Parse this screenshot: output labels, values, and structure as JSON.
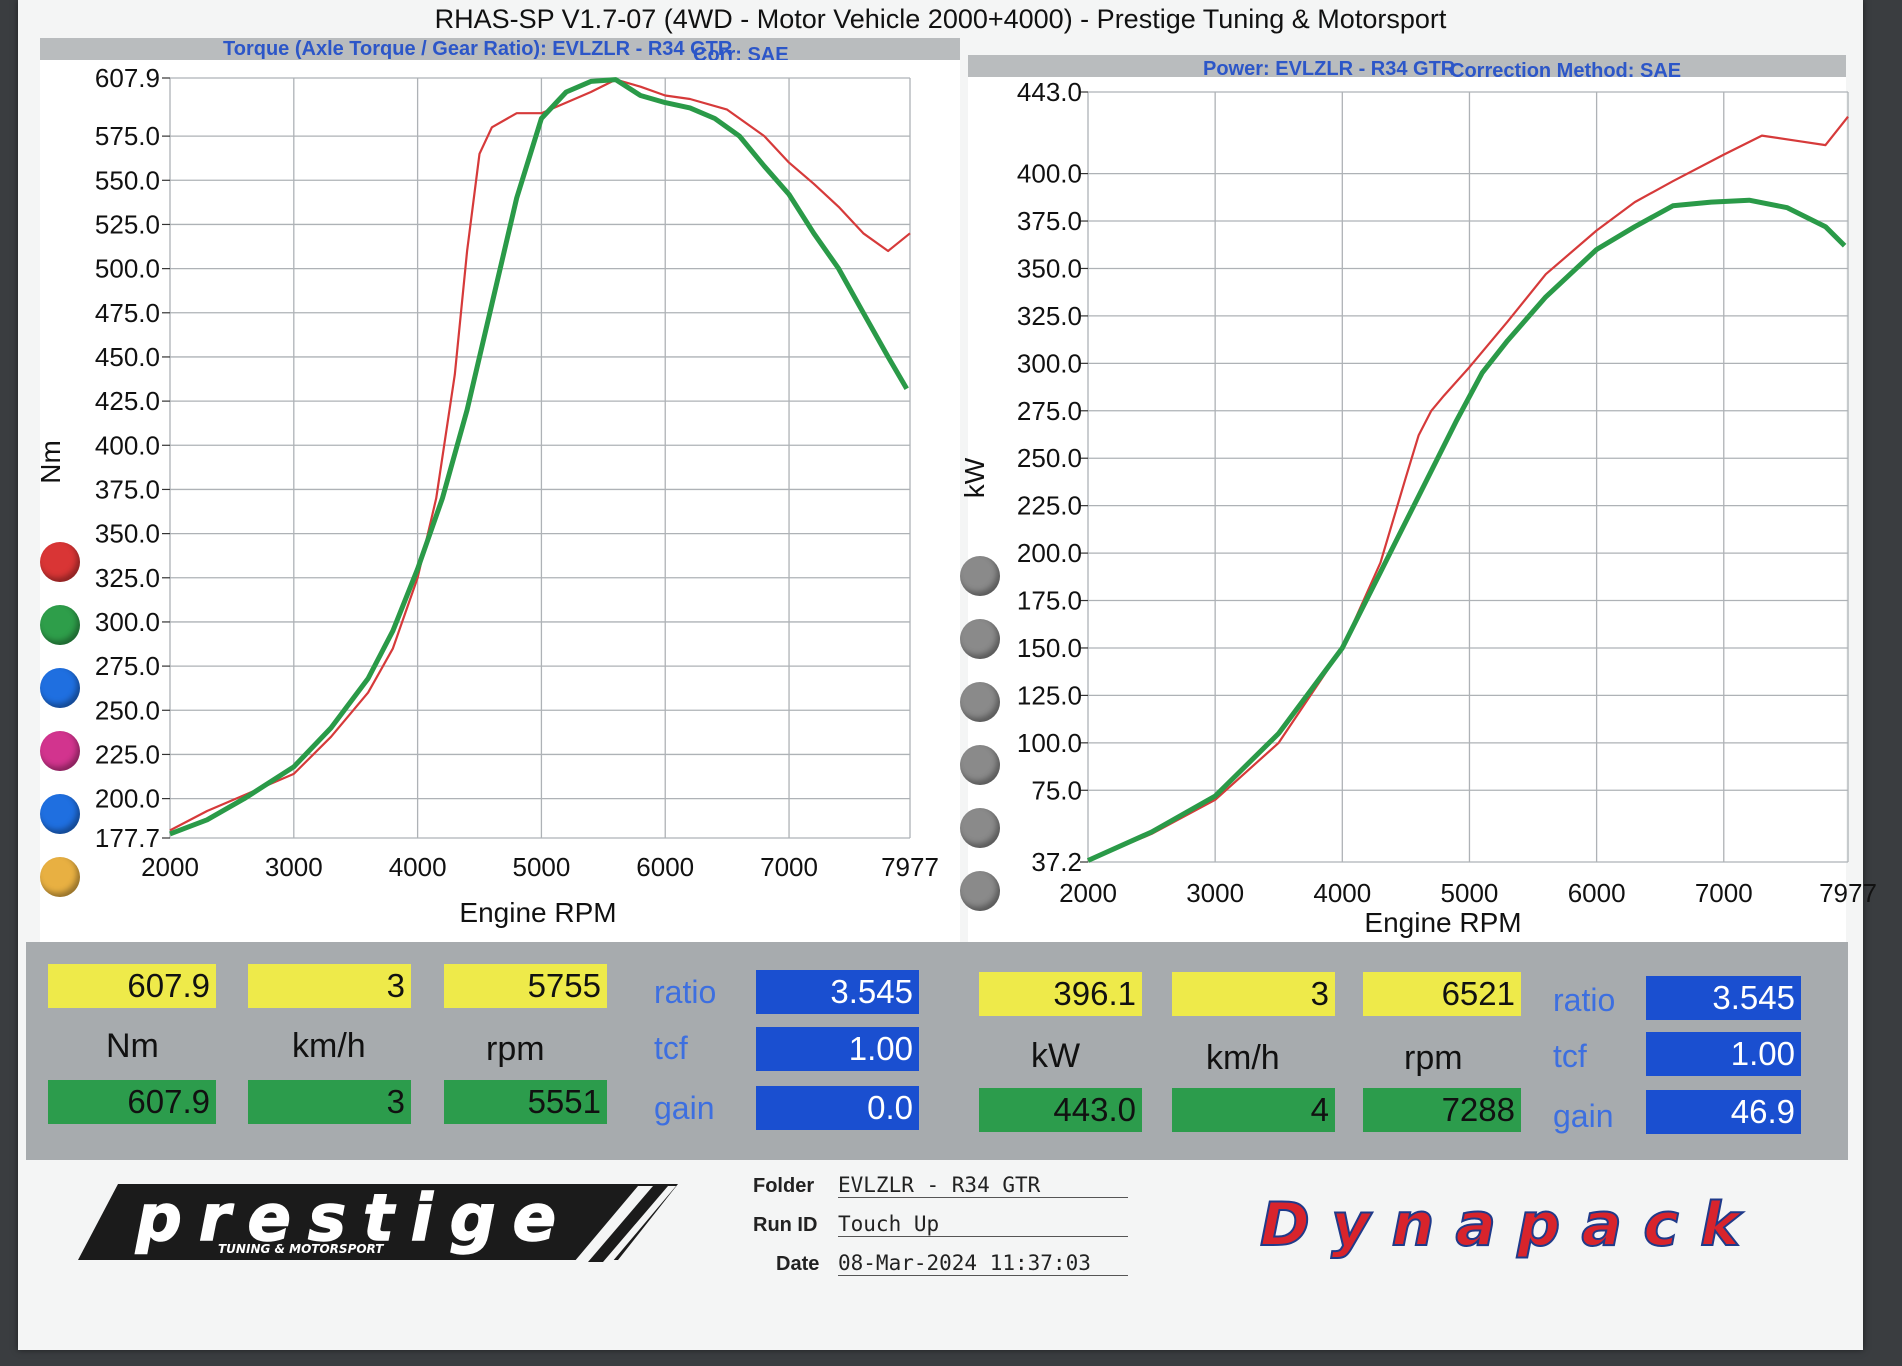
{
  "header": {
    "title": "RHAS-SP V1.7-07  (4WD - Motor Vehicle 2000+4000) - Prestige Tuning & Motorsport",
    "torque_subtitle": "Torque (Axle Torque / Gear Ratio): EVLZLR - R34 GTR",
    "torque_corr": "Corr: SAE",
    "power_subtitle": "Power: EVLZLR - R34 GTR",
    "power_corr": "Correction Method: SAE"
  },
  "colors": {
    "red_run": "#d63a3a",
    "green_run": "#2a9a48",
    "swatches_left": [
      "#d93535",
      "#2e9e4a",
      "#1f6fe0",
      "#d2348e",
      "#1f6fe0",
      "#e8b042"
    ],
    "swatches_right": [
      "#8a8a8a",
      "#8a8a8a",
      "#8a8a8a",
      "#8a8a8a",
      "#8a8a8a",
      "#8a8a8a"
    ]
  },
  "chart_data": [
    {
      "type": "line",
      "xlabel": "Engine RPM",
      "ylabel": "Nm",
      "xlim": [
        2000,
        7977
      ],
      "ylim": [
        177.7,
        607.9
      ],
      "xticks": [
        "2000",
        "3000",
        "4000",
        "5000",
        "6000",
        "7000",
        "7977"
      ],
      "yticks": [
        "607.9",
        "575.0",
        "550.0",
        "525.0",
        "500.0",
        "475.0",
        "450.0",
        "425.0",
        "400.0",
        "375.0",
        "350.0",
        "325.0",
        "300.0",
        "275.0",
        "250.0",
        "225.0",
        "200.0",
        "177.7"
      ],
      "grid": true,
      "series": [
        {
          "color": "red",
          "x": [
            2000,
            2300,
            2600,
            3000,
            3300,
            3600,
            3800,
            4000,
            4150,
            4300,
            4400,
            4500,
            4600,
            4800,
            5000,
            5200,
            5400,
            5600,
            5800,
            6000,
            6200,
            6500,
            6800,
            7000,
            7200,
            7400,
            7600,
            7800,
            7977
          ],
          "y": [
            182,
            193,
            202,
            214,
            235,
            260,
            285,
            325,
            370,
            440,
            510,
            565,
            580,
            588,
            588,
            594,
            600,
            607,
            603,
            598,
            596,
            590,
            575,
            560,
            548,
            535,
            520,
            510,
            520
          ]
        },
        {
          "color": "green",
          "x": [
            2000,
            2300,
            2600,
            3000,
            3300,
            3600,
            3800,
            4000,
            4200,
            4400,
            4600,
            4800,
            5000,
            5200,
            5400,
            5600,
            5800,
            6000,
            6200,
            6400,
            6600,
            6800,
            7000,
            7200,
            7400,
            7600,
            7800,
            7950
          ],
          "y": [
            180,
            188,
            200,
            218,
            240,
            268,
            295,
            330,
            370,
            420,
            480,
            540,
            585,
            600,
            606,
            607,
            598,
            594,
            591,
            585,
            575,
            558,
            542,
            520,
            500,
            475,
            450,
            432
          ]
        }
      ]
    },
    {
      "type": "line",
      "xlabel": "Engine RPM",
      "ylabel": "kW",
      "xlim": [
        2000,
        7977
      ],
      "ylim": [
        37.2,
        443.0
      ],
      "xticks": [
        "2000",
        "3000",
        "4000",
        "5000",
        "6000",
        "7000",
        "7977"
      ],
      "yticks": [
        "443.0",
        "400.0",
        "375.0",
        "350.0",
        "325.0",
        "300.0",
        "275.0",
        "250.0",
        "225.0",
        "200.0",
        "175.0",
        "150.0",
        "125.0",
        "100.0",
        "75.0",
        "37.2"
      ],
      "grid": true,
      "series": [
        {
          "color": "red",
          "x": [
            2000,
            2500,
            3000,
            3500,
            4000,
            4300,
            4500,
            4600,
            4700,
            4800,
            5000,
            5300,
            5600,
            6000,
            6300,
            6600,
            7000,
            7300,
            7600,
            7800,
            7977
          ],
          "y": [
            38,
            52,
            70,
            100,
            150,
            195,
            240,
            262,
            275,
            283,
            298,
            322,
            347,
            370,
            385,
            396,
            410,
            420,
            417,
            415,
            430
          ]
        },
        {
          "color": "green",
          "x": [
            2000,
            2500,
            3000,
            3500,
            4000,
            4300,
            4600,
            4900,
            5100,
            5300,
            5600,
            6000,
            6300,
            6600,
            6900,
            7200,
            7500,
            7800,
            7950
          ],
          "y": [
            38,
            53,
            72,
            105,
            150,
            190,
            230,
            270,
            295,
            312,
            335,
            360,
            372,
            383,
            385,
            386,
            382,
            372,
            362
          ]
        }
      ]
    }
  ],
  "readouts": {
    "left": {
      "top": [
        "607.9",
        "3",
        "5755"
      ],
      "units": [
        "Nm",
        "km/h",
        "rpm"
      ],
      "bottom": [
        "607.9",
        "3",
        "5551"
      ],
      "labels": [
        "ratio",
        "tcf",
        "gain"
      ],
      "blue": [
        "3.545",
        "1.00",
        "0.0"
      ]
    },
    "right": {
      "top": [
        "396.1",
        "3",
        "6521"
      ],
      "units": [
        "kW",
        "km/h",
        "rpm"
      ],
      "bottom": [
        "443.0",
        "4",
        "7288"
      ],
      "labels": [
        "ratio",
        "tcf",
        "gain"
      ],
      "blue": [
        "3.545",
        "1.00",
        "46.9"
      ]
    }
  },
  "footer": {
    "logo_text": "prestige",
    "logo_sub": "TUNING & MOTORSPORT",
    "folder_label": "Folder",
    "folder_value": "EVLZLR - R34 GTR",
    "runid_label": "Run ID",
    "runid_value": "Touch Up",
    "date_label": "Date",
    "date_value": "08-Mar-2024  11:37:03",
    "brand": "Dynapack"
  }
}
